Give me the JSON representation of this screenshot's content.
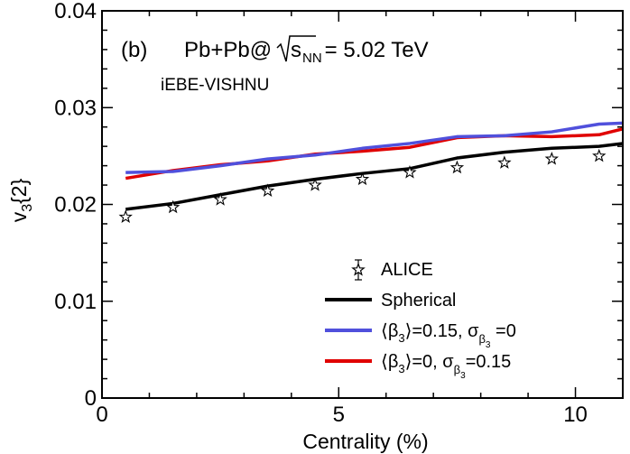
{
  "chart_data": {
    "type": "line",
    "xlabel": "Centrality (%)",
    "ylabel_main": "v",
    "ylabel_sub": "3",
    "ylabel_tail": "{2}",
    "xlim": [
      0,
      11
    ],
    "ylim": [
      0,
      0.04
    ],
    "x_ticks": [
      0,
      5,
      10
    ],
    "x_tick_labels": [
      "0",
      "5",
      "10"
    ],
    "y_ticks": [
      0,
      0.01,
      0.02,
      0.03,
      0.04
    ],
    "y_tick_labels": [
      "0",
      "0.01",
      "0.02",
      "0.03",
      "0.04"
    ],
    "annotations": {
      "panel": "(b)",
      "system_prefix": "Pb+Pb@",
      "sqrt_var": "s",
      "sqrt_sub": "NN",
      "system_suffix": " = 5.02 TeV",
      "model": "iEBE-VISHNU"
    },
    "series": [
      {
        "name": "ALICE",
        "kind": "points",
        "color": "#000000",
        "x": [
          0.5,
          1.5,
          2.5,
          3.5,
          4.5,
          5.5,
          6.5,
          7.5,
          8.5,
          9.5,
          10.5
        ],
        "y": [
          0.0187,
          0.0197,
          0.0205,
          0.0214,
          0.022,
          0.0226,
          0.0233,
          0.0238,
          0.0243,
          0.0247,
          0.025
        ]
      },
      {
        "name": "Spherical",
        "kind": "line",
        "color": "#000000",
        "x": [
          0.5,
          1.5,
          2.5,
          3.5,
          4.5,
          5.5,
          6.5,
          7.5,
          8.5,
          9.5,
          10.5,
          11
        ],
        "y": [
          0.0195,
          0.0201,
          0.021,
          0.0219,
          0.0226,
          0.0232,
          0.0237,
          0.0248,
          0.0254,
          0.0258,
          0.026,
          0.0263
        ]
      },
      {
        "name": "beta3_015",
        "legend_mean_sym": "β",
        "legend_mean_sub": "3",
        "legend_mean_val": "=0.15, ",
        "legend_sigma_sym": "σ",
        "legend_sigma_sub_sym": "β",
        "legend_sigma_sub_sub": "3",
        "legend_sigma_val": " =0",
        "kind": "line",
        "color": "#5050dc",
        "x": [
          0.5,
          1.5,
          2.5,
          3.5,
          4.5,
          5.5,
          6.5,
          7.5,
          8.5,
          9.5,
          10.5,
          11
        ],
        "y": [
          0.0233,
          0.0234,
          0.024,
          0.0247,
          0.0251,
          0.0258,
          0.0263,
          0.027,
          0.0271,
          0.0275,
          0.0283,
          0.0284
        ]
      },
      {
        "name": "beta3_0",
        "legend_mean_sym": "β",
        "legend_mean_sub": "3",
        "legend_mean_val": "=0, ",
        "legend_sigma_sym": "σ",
        "legend_sigma_sub_sym": "β",
        "legend_sigma_sub_sub": "3",
        "legend_sigma_val": "=0.15",
        "kind": "line",
        "color": "#e00000",
        "x": [
          0.5,
          1.5,
          2.5,
          3.5,
          4.5,
          5.5,
          6.5,
          7.5,
          8.5,
          9.5,
          10.5,
          11
        ],
        "y": [
          0.0227,
          0.0235,
          0.0241,
          0.0245,
          0.0252,
          0.0255,
          0.0259,
          0.0269,
          0.0271,
          0.027,
          0.0272,
          0.0278
        ]
      }
    ],
    "legend_position": "bottom-right"
  }
}
